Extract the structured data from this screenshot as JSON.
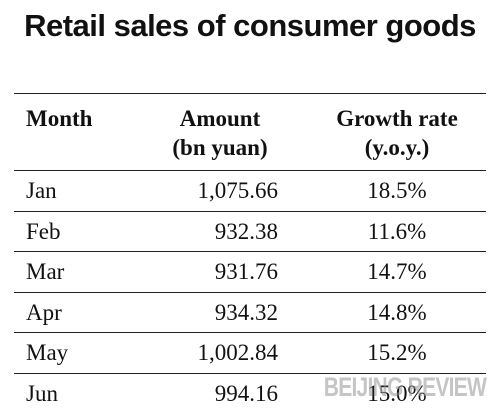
{
  "chart_data": {
    "type": "table",
    "title": "Retail sales of consumer goods",
    "columns": [
      {
        "line1": "Month",
        "line2": ""
      },
      {
        "line1": "Amount",
        "line2": "(bn yuan)"
      },
      {
        "line1": "Growth rate",
        "line2": "(y.o.y.)"
      }
    ],
    "rows": [
      {
        "month": "Jan",
        "amount": "1,075.66",
        "growth": "18.5%"
      },
      {
        "month": "Feb",
        "amount": "932.38",
        "growth": "11.6%"
      },
      {
        "month": "Mar",
        "amount": "931.76",
        "growth": "14.7%"
      },
      {
        "month": "Apr",
        "amount": "934.32",
        "growth": "14.8%"
      },
      {
        "month": "May",
        "amount": "1,002.84",
        "growth": "15.2%"
      },
      {
        "month": "Jun",
        "amount": "994.16",
        "growth": "15.0%"
      }
    ]
  },
  "watermark": "BEIJING REVIEW"
}
